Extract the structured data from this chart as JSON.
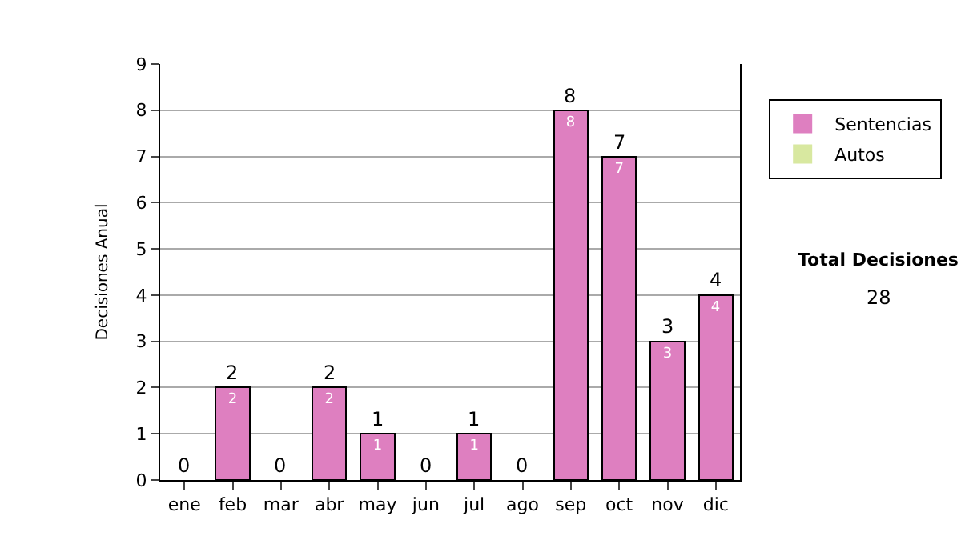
{
  "chart_data": {
    "type": "bar",
    "ylabel": "Decisiones Anual",
    "stacked": true,
    "categories": [
      "ene",
      "feb",
      "mar",
      "abr",
      "may",
      "jun",
      "jul",
      "ago",
      "sep",
      "oct",
      "nov",
      "dic"
    ],
    "series": [
      {
        "name": "Sentencias",
        "color": "#de7fc0",
        "values": [
          0,
          2,
          0,
          2,
          1,
          0,
          1,
          0,
          8,
          7,
          3,
          4
        ],
        "value_labels": [
          null,
          "2",
          null,
          "2",
          "1",
          null,
          "1",
          null,
          "8",
          "7",
          "3",
          "4"
        ]
      },
      {
        "name": "Autos",
        "color": "#d8e8a0",
        "values": [
          0,
          0,
          0,
          0,
          0,
          0,
          0,
          0,
          0,
          0,
          0,
          0
        ]
      }
    ],
    "totals": [
      "0",
      "2",
      "0",
      "2",
      "1",
      "0",
      "1",
      "0",
      "8",
      "7",
      "3",
      "4"
    ],
    "ylim": [
      0,
      9
    ],
    "yticks": [
      0,
      1,
      2,
      3,
      4,
      5,
      6,
      7,
      8,
      9
    ],
    "grid": "y",
    "legend": "right",
    "annotations": [
      "Total Decisiones",
      "28"
    ]
  }
}
